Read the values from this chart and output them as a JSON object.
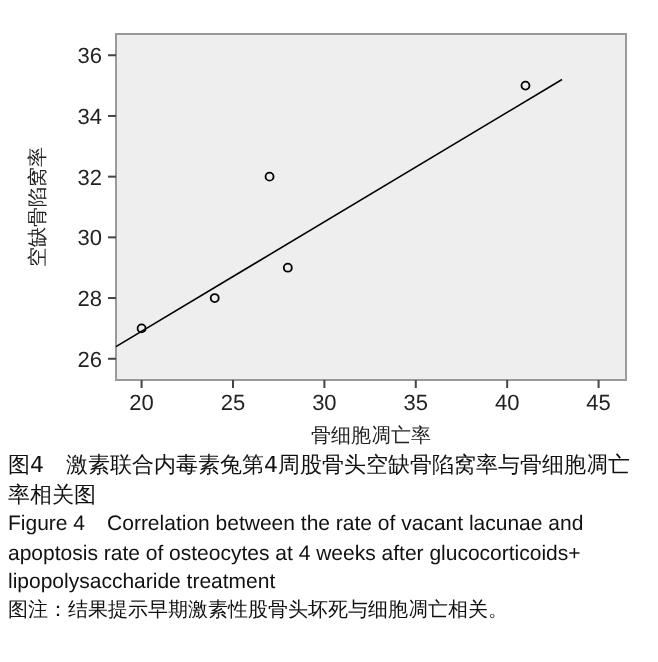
{
  "chart_data": {
    "type": "scatter",
    "title": "图4　激素联合内毒素兔第4周股骨头空缺骨陷窝率与骨细胞凋亡率相关图",
    "subtitle": "Figure 4　Correlation between the rate of vacant lacunae and apoptosis rate of osteocytes at 4 weeks after glucocorticoids+ lipopolysaccharide treatment",
    "annotations": [
      "图注：结果提示早期激素性股骨头坏死与细胞凋亡相关。"
    ],
    "xlabel": "骨细胞凋亡率",
    "ylabel": "空缺骨陷窝率",
    "xlim": [
      18.6,
      46.5
    ],
    "ylim": [
      25.3,
      36.7
    ],
    "xticks": [
      20,
      25,
      30,
      35,
      40,
      45
    ],
    "yticks": [
      26,
      28,
      30,
      32,
      34,
      36
    ],
    "grid": false,
    "series": [
      {
        "marker": "circle",
        "color": "#000000",
        "x": [
          20,
          24,
          27,
          28,
          41
        ],
        "values": [
          27,
          28,
          32,
          29,
          35
        ]
      },
      {
        "type": "line",
        "color": "#000000",
        "x": [
          18.6,
          43
        ],
        "values": [
          26.4,
          35.2
        ]
      }
    ]
  }
}
